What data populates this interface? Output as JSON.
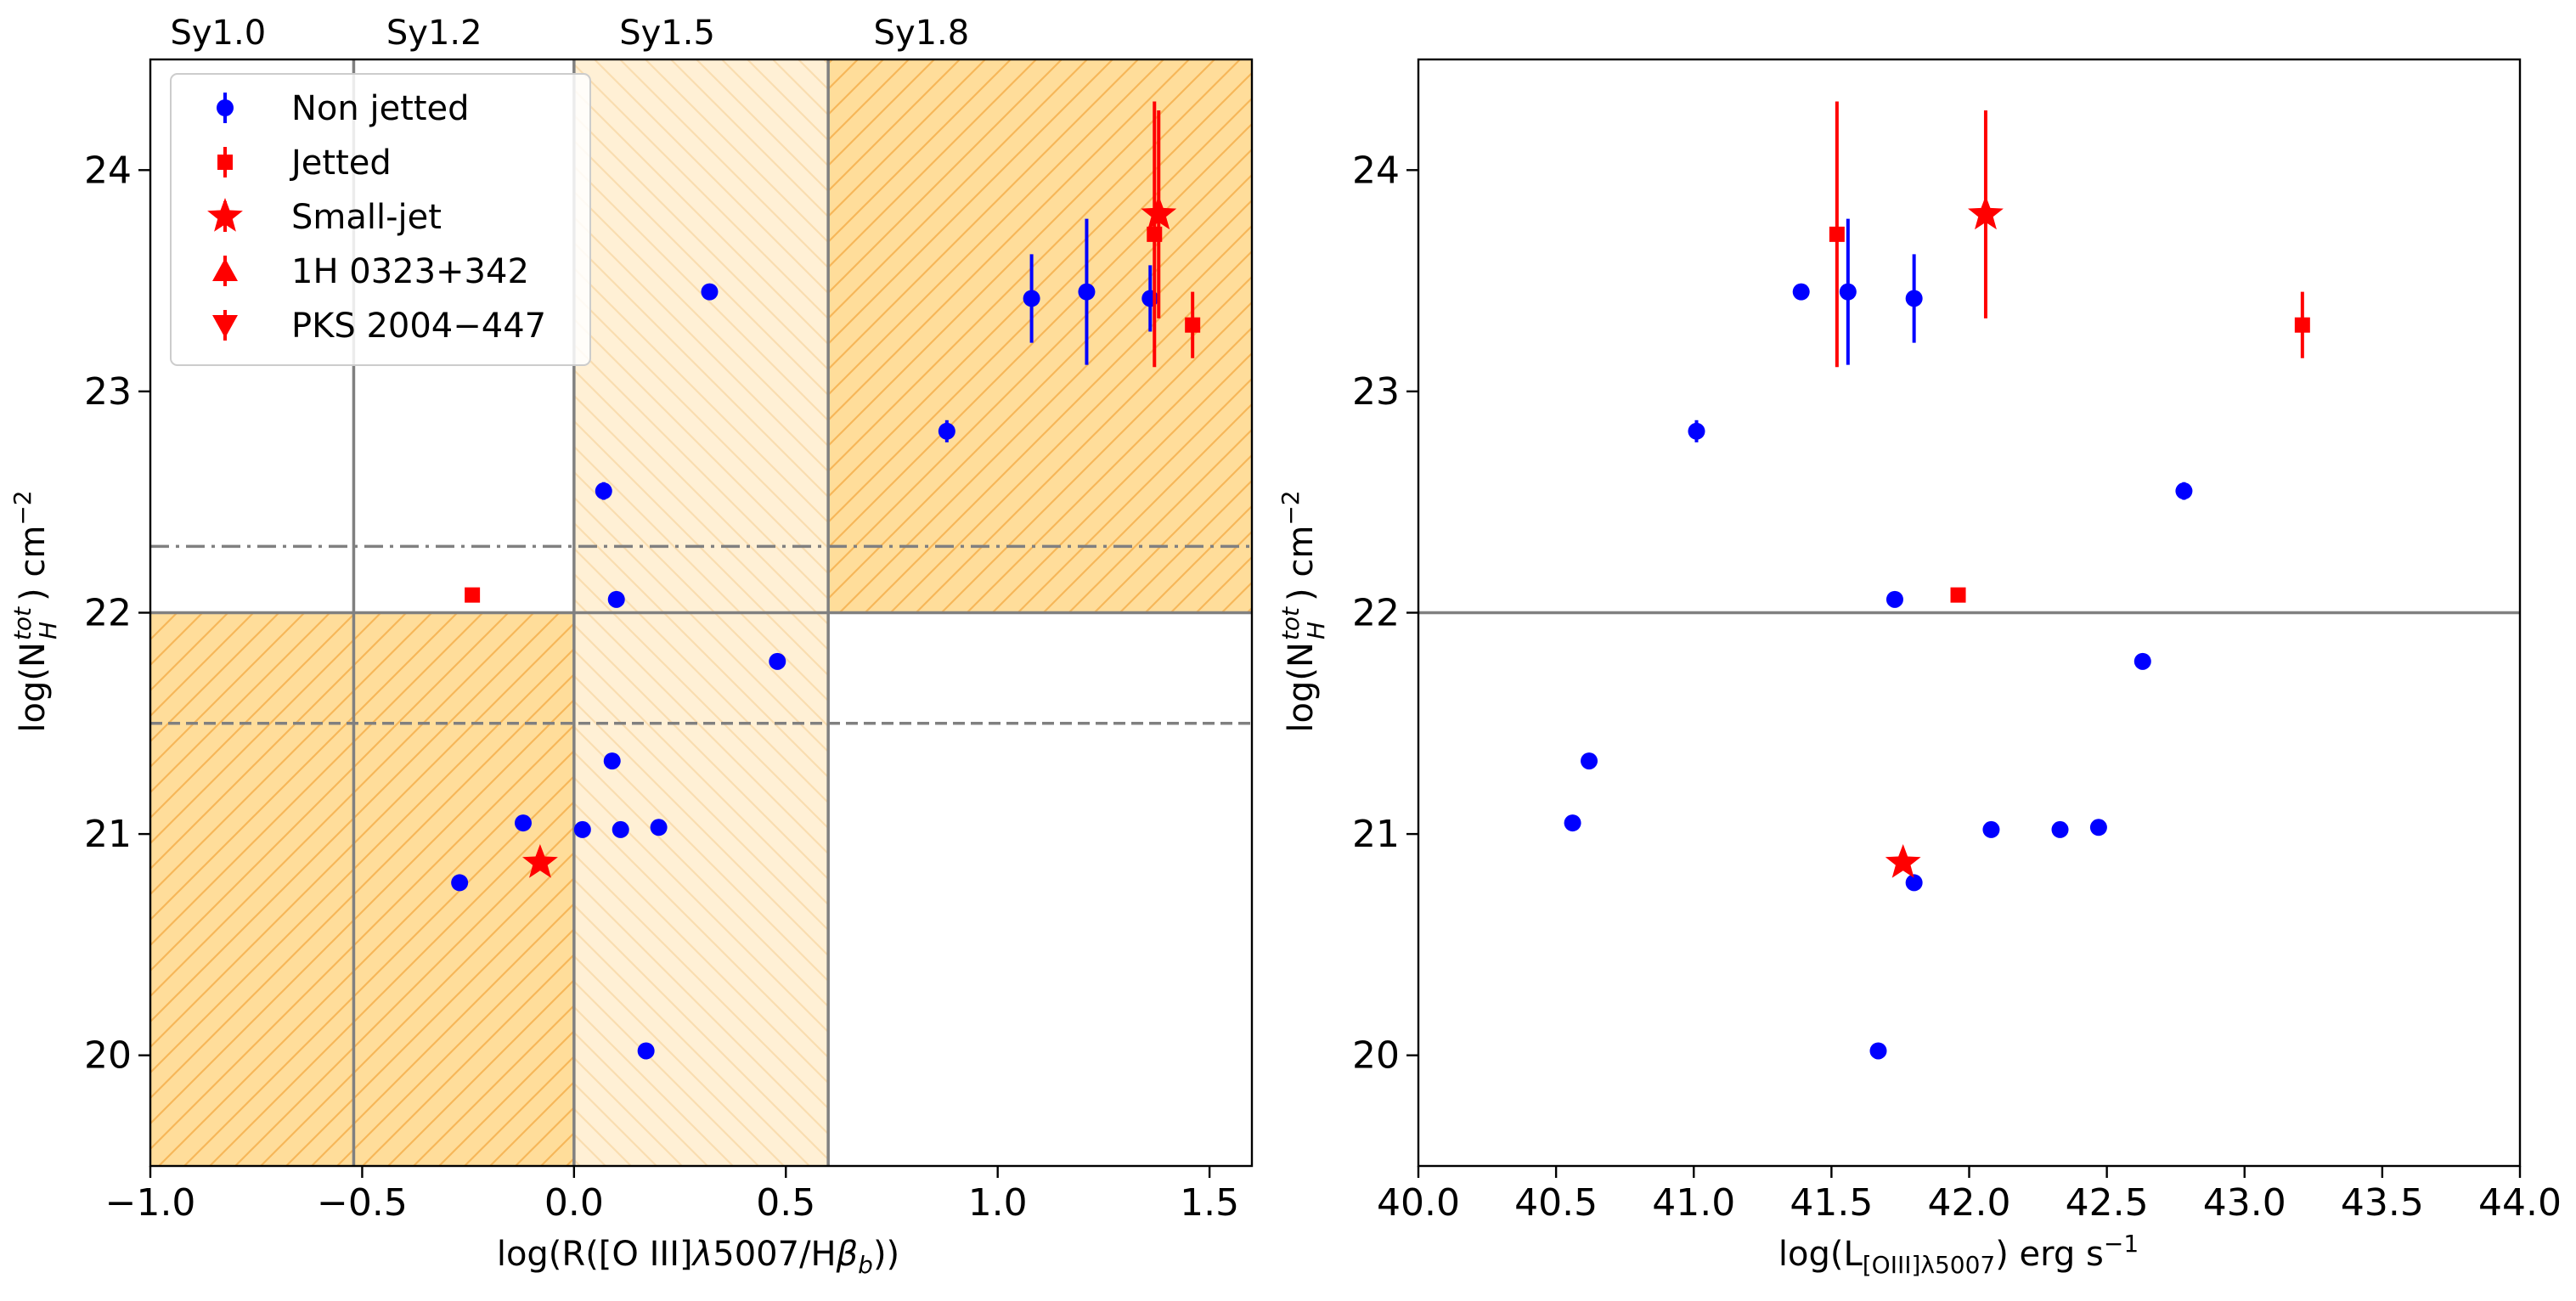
{
  "colors": {
    "non_jetted": "#0000ff",
    "jetted": "#ff0000",
    "orange_dark": "#ffdd9a",
    "orange_light": "#fff0d5",
    "hatch_dark": "#f6b75a",
    "hatch_light": "#f9ddb0",
    "grid_line": "#808080"
  },
  "chart_data": [
    {
      "type": "scatter",
      "xlabel": "log(R([O III]λ5007/Hβ_b))",
      "ylabel": "log(N_H^tot) cm^-2",
      "xlim": [
        -1.0,
        1.6
      ],
      "ylim": [
        19.5,
        24.5
      ],
      "xticks": [
        -1.0,
        -0.5,
        0.0,
        0.5,
        1.0,
        1.5
      ],
      "xtick_labels": [
        "−1.0",
        "−0.5",
        "0.0",
        "0.5",
        "1.0",
        "1.5"
      ],
      "yticks": [
        20,
        21,
        22,
        23,
        24
      ],
      "ytick_labels": [
        "20",
        "21",
        "22",
        "23",
        "24"
      ],
      "class_boundaries": [
        -0.52,
        0.0,
        0.6
      ],
      "class_labels": [
        {
          "text": "Sy1.0",
          "x": -0.84
        },
        {
          "text": "Sy1.2",
          "x": -0.33
        },
        {
          "text": "Sy1.5",
          "x": 0.22
        },
        {
          "text": "Sy1.8",
          "x": 0.82
        }
      ],
      "hlines": [
        {
          "y": 22.0,
          "style": "solid"
        },
        {
          "y": 22.3,
          "style": "dashdot"
        },
        {
          "y": 21.5,
          "style": "dashed"
        }
      ],
      "regions": [
        {
          "x0": -1.0,
          "x1": 0.0,
          "y0": 19.5,
          "y1": 22.0,
          "shade": "dark"
        },
        {
          "x0": 0.0,
          "x1": 0.6,
          "y0": 19.5,
          "y1": 24.5,
          "shade": "light"
        },
        {
          "x0": 0.6,
          "x1": 1.6,
          "y0": 22.0,
          "y1": 24.5,
          "shade": "dark"
        }
      ],
      "series": [
        {
          "name": "Non jetted",
          "marker": "circle",
          "points": [
            {
              "x": 0.32,
              "y": 23.45
            },
            {
              "x": 1.08,
              "y": 23.42,
              "err": 0.2
            },
            {
              "x": 1.21,
              "y": 23.45,
              "err": 0.33
            },
            {
              "x": 1.36,
              "y": 23.42,
              "err": 0.15
            },
            {
              "x": 0.88,
              "y": 22.82,
              "err": 0.05
            },
            {
              "x": 0.07,
              "y": 22.55,
              "err": 0.04
            },
            {
              "x": 0.1,
              "y": 22.06
            },
            {
              "x": 0.48,
              "y": 21.78
            },
            {
              "x": 0.09,
              "y": 21.33
            },
            {
              "x": -0.12,
              "y": 21.05
            },
            {
              "x": 0.02,
              "y": 21.02
            },
            {
              "x": 0.11,
              "y": 21.02
            },
            {
              "x": 0.2,
              "y": 21.03
            },
            {
              "x": -0.27,
              "y": 20.78
            },
            {
              "x": 0.17,
              "y": 20.02
            }
          ]
        },
        {
          "name": "Jetted",
          "marker": "square",
          "points": [
            {
              "x": 1.37,
              "y": 23.71,
              "err_lo": 0.6,
              "err_hi": 0.6
            },
            {
              "x": 1.46,
              "y": 23.3,
              "err_lo": 0.15,
              "err_hi": 0.15
            },
            {
              "x": -0.24,
              "y": 22.08,
              "err_lo": 0.03,
              "err_hi": 0.03
            }
          ]
        },
        {
          "name": "Small-jet",
          "marker": "star",
          "points": [
            {
              "x": 1.38,
              "y": 23.8,
              "err_lo": 0.47,
              "err_hi": 0.47
            },
            {
              "x": -0.08,
              "y": 20.87
            }
          ]
        },
        {
          "name": "1H 0323+342",
          "marker": "triangle-up",
          "points": []
        },
        {
          "name": "PKS 2004−447",
          "marker": "triangle-down",
          "points": []
        }
      ],
      "legend": [
        "Non jetted",
        "Jetted",
        "Small-jet",
        "1H 0323+342",
        "PKS 2004−447"
      ],
      "legend_position": "top-left"
    },
    {
      "type": "scatter",
      "xlabel": "log(L_[OIII]λ5007) erg s^-1",
      "ylabel": "log(N_H^tot) cm^-2",
      "xlim": [
        40.0,
        44.0
      ],
      "ylim": [
        19.5,
        24.5
      ],
      "xticks": [
        40.0,
        40.5,
        41.0,
        41.5,
        42.0,
        42.5,
        43.0,
        43.5,
        44.0
      ],
      "xtick_labels": [
        "40.0",
        "40.5",
        "41.0",
        "41.5",
        "42.0",
        "42.5",
        "43.0",
        "43.5",
        "44.0"
      ],
      "yticks": [
        20,
        21,
        22,
        23,
        24
      ],
      "ytick_labels": [
        "20",
        "21",
        "22",
        "23",
        "24"
      ],
      "hlines": [
        {
          "y": 22.0,
          "style": "solid"
        }
      ],
      "series": [
        {
          "name": "Non jetted",
          "marker": "circle",
          "points": [
            {
              "x": 41.39,
              "y": 23.45
            },
            {
              "x": 41.56,
              "y": 23.45,
              "err": 0.33
            },
            {
              "x": 41.8,
              "y": 23.42,
              "err": 0.2
            },
            {
              "x": 41.01,
              "y": 22.82,
              "err": 0.05
            },
            {
              "x": 42.78,
              "y": 22.55,
              "err": 0.04
            },
            {
              "x": 41.73,
              "y": 22.06
            },
            {
              "x": 42.63,
              "y": 21.78
            },
            {
              "x": 40.62,
              "y": 21.33
            },
            {
              "x": 40.56,
              "y": 21.05
            },
            {
              "x": 42.08,
              "y": 21.02
            },
            {
              "x": 42.33,
              "y": 21.02
            },
            {
              "x": 42.47,
              "y": 21.03
            },
            {
              "x": 41.8,
              "y": 20.78
            },
            {
              "x": 41.67,
              "y": 20.02
            }
          ]
        },
        {
          "name": "Jetted",
          "marker": "square",
          "points": [
            {
              "x": 41.52,
              "y": 23.71,
              "err_lo": 0.6,
              "err_hi": 0.6
            },
            {
              "x": 43.21,
              "y": 23.3,
              "err_lo": 0.15,
              "err_hi": 0.15
            },
            {
              "x": 41.96,
              "y": 22.08,
              "err_lo": 0.03,
              "err_hi": 0.03
            }
          ]
        },
        {
          "name": "Small-jet",
          "marker": "star",
          "points": [
            {
              "x": 42.06,
              "y": 23.8,
              "err_lo": 0.47,
              "err_hi": 0.47
            },
            {
              "x": 41.76,
              "y": 20.87
            }
          ]
        }
      ]
    }
  ]
}
